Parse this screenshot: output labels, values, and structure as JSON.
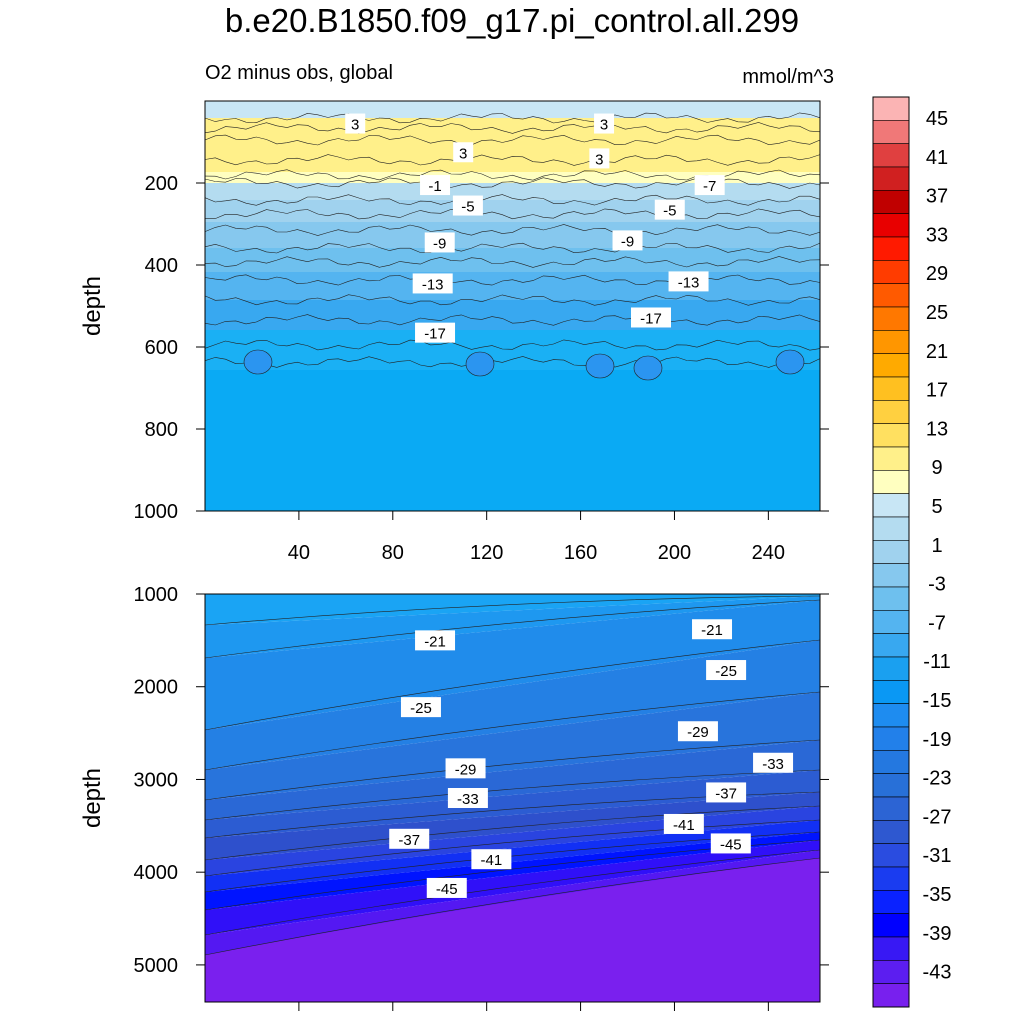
{
  "chart_data": {
    "title": "b.e20.B1850.f09_g17.pi_control.all.299",
    "subtitle": "O2 minus obs, global",
    "units": "mmol/m^3",
    "type": "heatmap",
    "colorbar": {
      "labels": [
        "45",
        "41",
        "37",
        "33",
        "29",
        "25",
        "21",
        "17",
        "13",
        "9",
        "5",
        "1",
        "-3",
        "-7",
        "-11",
        "-15",
        "-19",
        "-23",
        "-27",
        "-31",
        "-35",
        "-39",
        "-43"
      ],
      "colors": [
        "#fbb4b4",
        "#f07878",
        "#e04040",
        "#d02020",
        "#c00000",
        "#e80000",
        "#ff1a00",
        "#ff3c00",
        "#ff5a00",
        "#ff7800",
        "#ff9600",
        "#ffaa00",
        "#ffc020",
        "#ffd040",
        "#ffe060",
        "#fff08a",
        "#ffffc0",
        "#c8e6f5",
        "#b4dcf0",
        "#a0d2ee",
        "#86c8ee",
        "#6ec0ee",
        "#54b4f0",
        "#38a8f0",
        "#1aa0f0",
        "#0a98f4",
        "#1e8cf0",
        "#2280ea",
        "#2478e0",
        "#2870d8",
        "#2c64d4",
        "#2e58d0",
        "#2a4ce0",
        "#1a3cf0",
        "#0a22ff",
        "#0000ff",
        "#3818f4",
        "#5c1ef0",
        "#7820ee"
      ]
    },
    "panels": [
      {
        "name": "upper",
        "ylabel": "depth",
        "ylim": [
          1000,
          0
        ],
        "yticks": [
          "200",
          "400",
          "600",
          "800",
          "1000"
        ],
        "xticks": [
          "40",
          "80",
          "120",
          "160",
          "200",
          "240"
        ],
        "xlim": [
          0,
          262
        ],
        "contour_labels": [
          {
            "text": "3",
            "x": 64,
            "y": 55
          },
          {
            "text": "3",
            "x": 170,
            "y": 55
          },
          {
            "text": "3",
            "x": 110,
            "y": 125
          },
          {
            "text": "3",
            "x": 168,
            "y": 140
          },
          {
            "text": "-1",
            "x": 98,
            "y": 205
          },
          {
            "text": "-5",
            "x": 112,
            "y": 255
          },
          {
            "text": "-7",
            "x": 215,
            "y": 205
          },
          {
            "text": "-5",
            "x": 198,
            "y": 265
          },
          {
            "text": "-9",
            "x": 100,
            "y": 345
          },
          {
            "text": "-9",
            "x": 180,
            "y": 340
          },
          {
            "text": "-13",
            "x": 97,
            "y": 445
          },
          {
            "text": "-13",
            "x": 206,
            "y": 440
          },
          {
            "text": "-17",
            "x": 98,
            "y": 565
          },
          {
            "text": "-17",
            "x": 190,
            "y": 528
          }
        ]
      },
      {
        "name": "lower",
        "ylabel": "depth",
        "ylim": [
          5400,
          1000
        ],
        "yticks": [
          "1000",
          "2000",
          "3000",
          "4000",
          "5000"
        ],
        "xticks": [],
        "xlim": [
          0,
          262
        ],
        "contour_labels": [
          {
            "text": "-21",
            "x": 98,
            "y": 1500
          },
          {
            "text": "-21",
            "x": 216,
            "y": 1380
          },
          {
            "text": "-25",
            "x": 92,
            "y": 2220
          },
          {
            "text": "-25",
            "x": 222,
            "y": 1820
          },
          {
            "text": "-29",
            "x": 111,
            "y": 2880
          },
          {
            "text": "-29",
            "x": 210,
            "y": 2480
          },
          {
            "text": "-33",
            "x": 112,
            "y": 3200
          },
          {
            "text": "-33",
            "x": 242,
            "y": 2820
          },
          {
            "text": "-37",
            "x": 87,
            "y": 3640
          },
          {
            "text": "-37",
            "x": 222,
            "y": 3140
          },
          {
            "text": "-41",
            "x": 122,
            "y": 3860
          },
          {
            "text": "-41",
            "x": 204,
            "y": 3480
          },
          {
            "text": "-45",
            "x": 103,
            "y": 4170
          },
          {
            "text": "-45",
            "x": 224,
            "y": 3690
          }
        ]
      }
    ]
  }
}
